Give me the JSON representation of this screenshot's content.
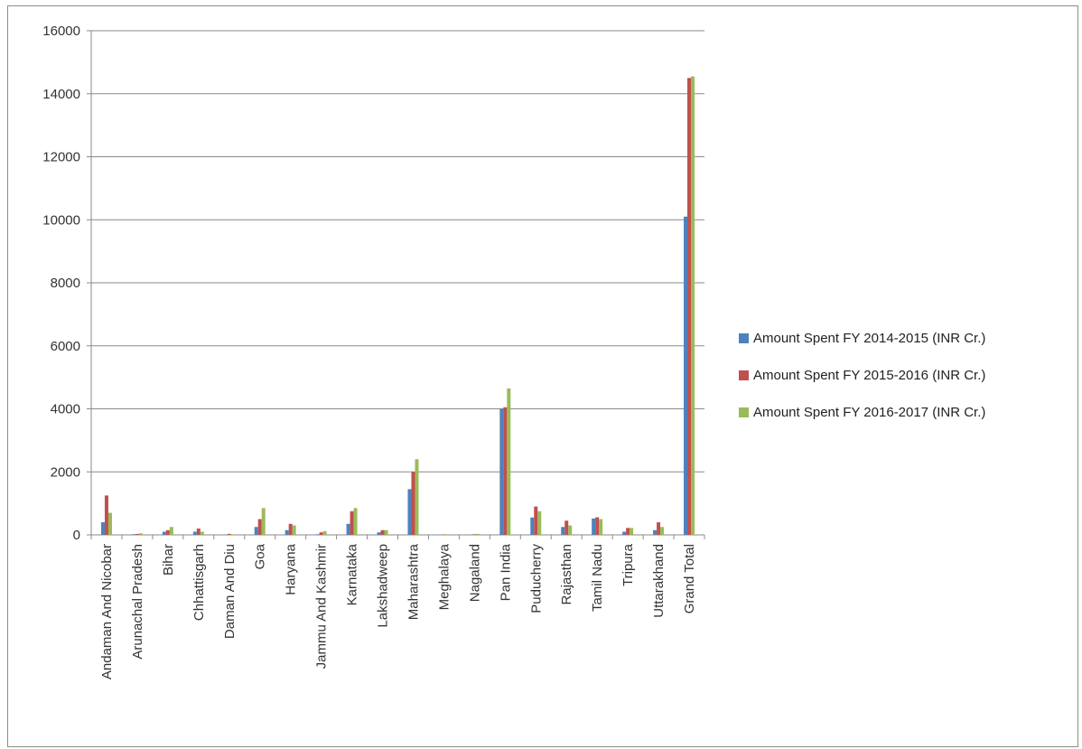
{
  "chart_data": {
    "type": "bar",
    "title": "",
    "xlabel": "",
    "ylabel": "",
    "ylim": [
      0,
      16000
    ],
    "yticks": [
      0,
      2000,
      4000,
      6000,
      8000,
      10000,
      12000,
      14000,
      16000
    ],
    "grid": "horizontal",
    "legend_position": "right",
    "categories": [
      "Andaman And Nicobar",
      "Arunachal Pradesh",
      "Bihar",
      "Chhattisgarh",
      "Daman And Diu",
      "Goa",
      "Haryana",
      "Jammu And Kashmir",
      "Karnataka",
      "Lakshadweep",
      "Maharashtra",
      "Meghalaya",
      "Nagaland",
      "Pan India",
      "Puducherry",
      "Rajasthan",
      "Tamil Nadu",
      "Tripura",
      "Uttarakhand",
      "Grand Total"
    ],
    "series": [
      {
        "name": "Amount Spent FY 2014-2015 (INR Cr.)",
        "color": "#4F81BD",
        "values": [
          400,
          20,
          100,
          100,
          10,
          250,
          150,
          20,
          350,
          80,
          1450,
          10,
          10,
          4000,
          550,
          250,
          520,
          100,
          150,
          10100
        ]
      },
      {
        "name": "Amount Spent FY 2015-2016 (INR Cr.)",
        "color": "#C0504D",
        "values": [
          1250,
          30,
          150,
          200,
          30,
          500,
          350,
          80,
          750,
          150,
          2000,
          15,
          20,
          4050,
          900,
          450,
          560,
          220,
          400,
          14500
        ]
      },
      {
        "name": "Amount Spent FY 2016-2017 (INR Cr.)",
        "color": "#9BBB59",
        "values": [
          700,
          50,
          250,
          100,
          20,
          850,
          300,
          120,
          850,
          150,
          2400,
          20,
          30,
          4650,
          750,
          300,
          500,
          220,
          250,
          14550
        ]
      }
    ]
  }
}
